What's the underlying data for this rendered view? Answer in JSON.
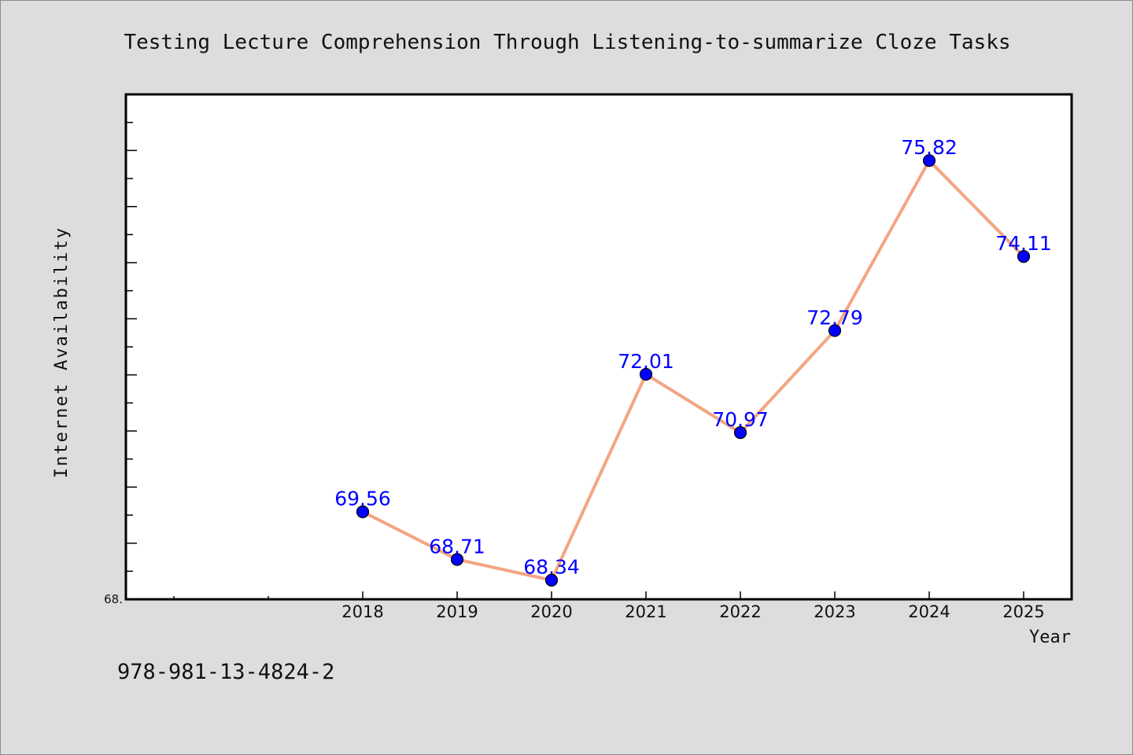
{
  "chart_data": {
    "type": "line",
    "title": "Testing Lecture Comprehension Through Listening-to-summarize Cloze Tasks",
    "xlabel": "Year",
    "ylabel": "Internet Availability",
    "categories": [
      "2018",
      "2019",
      "2020",
      "2021",
      "2022",
      "2023",
      "2024",
      "2025"
    ],
    "series": [
      {
        "values": [
          69.56,
          68.71,
          68.34,
          72.01,
          70.97,
          72.79,
          75.82,
          74.11
        ],
        "labels": [
          "69.56",
          "68.71",
          "68.34",
          "72.01",
          "70.97",
          "72.79",
          "75.82",
          "74.11"
        ]
      }
    ],
    "ylim": [
      68.0,
      77.0
    ],
    "y_tick_labels": [
      "68."
    ],
    "x_minor_ticks_before_data": 2,
    "grid": false,
    "line_color": "#f4a582",
    "marker_color": "#0000ff",
    "label_color": "#0000ff",
    "plot_background": "#ffffff",
    "figure_background": "#dddddd"
  },
  "footer": {
    "isbn": "978-981-13-4824-2"
  }
}
